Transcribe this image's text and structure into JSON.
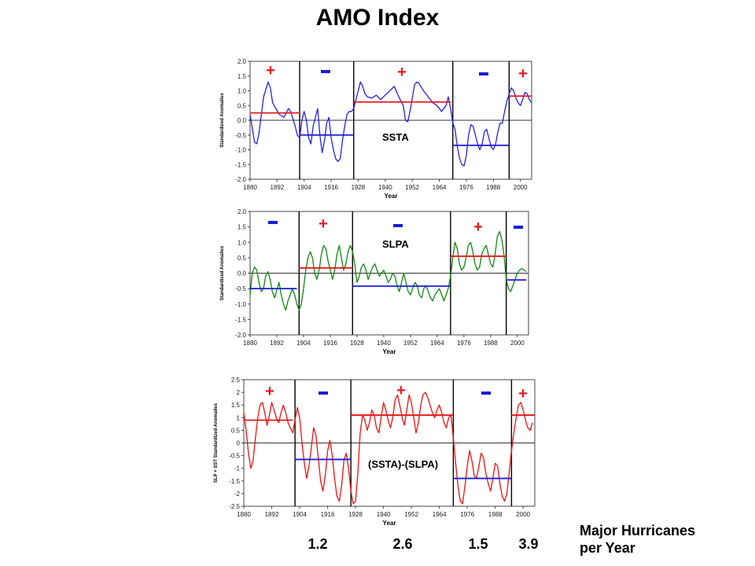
{
  "title": "AMO Index",
  "hurricanes": {
    "title_line1": "Major Hurricanes",
    "title_line2": "per Year",
    "values": [
      "1.2",
      "2.6",
      "1.5",
      "3.9"
    ]
  },
  "colors": {
    "positive": "#e8171b",
    "negative": "#1b1bd6",
    "ssta_line": "#2222ee",
    "slpa_line": "#118811",
    "diff_line": "#ee1111"
  },
  "chart_data": [
    {
      "type": "line",
      "title": "SSTA",
      "xlabel": "Year",
      "ylabel": "Standardized Anomalies",
      "xlim": [
        1880,
        2005
      ],
      "ylim": [
        -2.0,
        2.0
      ],
      "xticks": [
        1880,
        1892,
        1904,
        1916,
        1928,
        1940,
        1952,
        1964,
        1976,
        1988,
        2000
      ],
      "yticks": [
        2.0,
        1.5,
        1.0,
        0.5,
        0.0,
        -0.5,
        -1.0,
        -1.5,
        -2.0
      ],
      "ytick_labels": [
        "2.0",
        "1.5",
        "1.0",
        "0.5",
        "0.0",
        "-0.5",
        "-1.0",
        "-1.5",
        "-2.0"
      ],
      "dividers": [
        1902,
        1926,
        1970,
        1995
      ],
      "series": [
        {
          "x": [
            1880,
            1882,
            1883,
            1884,
            1886,
            1888,
            1889,
            1890,
            1891,
            1893,
            1895,
            1897,
            1898,
            1900,
            1901,
            1902,
            1903,
            1904,
            1905,
            1906,
            1907,
            1908,
            1910,
            1911,
            1912,
            1913,
            1914,
            1915,
            1916,
            1917,
            1918,
            1919,
            1920,
            1921,
            1922,
            1923,
            1924,
            1925,
            1926,
            1927,
            1928,
            1929,
            1930,
            1931,
            1932,
            1934,
            1936,
            1938,
            1940,
            1942,
            1944,
            1946,
            1948,
            1949,
            1950,
            1951,
            1953,
            1954,
            1955,
            1957,
            1959,
            1961,
            1963,
            1965,
            1967,
            1968,
            1969,
            1970,
            1971,
            1972,
            1973,
            1974,
            1975,
            1976,
            1977,
            1978,
            1979,
            1980,
            1981,
            1982,
            1983,
            1984,
            1985,
            1986,
            1987,
            1988,
            1989,
            1990,
            1991,
            1992,
            1993,
            1994,
            1995,
            1996,
            1997,
            1998,
            1999,
            2000,
            2001,
            2002,
            2003,
            2004,
            2005
          ],
          "y": [
            0.2,
            -0.75,
            -0.8,
            -0.4,
            0.8,
            1.3,
            1.1,
            0.6,
            0.45,
            0.2,
            0.1,
            0.4,
            0.3,
            -0.2,
            -0.5,
            -0.6,
            0.0,
            0.3,
            0.0,
            -0.6,
            -0.8,
            -0.2,
            0.4,
            -0.5,
            -1.1,
            -0.7,
            -0.1,
            0.1,
            -0.6,
            -1.0,
            -1.3,
            -1.4,
            -1.3,
            -0.7,
            -0.2,
            0.2,
            0.3,
            0.3,
            0.4,
            0.7,
            1.0,
            1.3,
            1.15,
            0.9,
            0.8,
            0.75,
            0.85,
            0.7,
            0.85,
            1.0,
            1.15,
            0.8,
            0.5,
            0.0,
            -0.05,
            0.3,
            1.2,
            1.3,
            1.25,
            1.0,
            0.8,
            0.6,
            0.5,
            0.3,
            0.5,
            0.8,
            0.4,
            -0.1,
            -0.3,
            -0.9,
            -1.3,
            -1.5,
            -1.55,
            -1.2,
            -0.5,
            -0.15,
            -0.2,
            -0.5,
            -0.8,
            -1.0,
            -0.8,
            -0.4,
            -0.3,
            -0.6,
            -0.9,
            -1.0,
            -0.8,
            -0.4,
            -0.1,
            -0.1,
            0.3,
            0.65,
            0.9,
            1.1,
            1.0,
            0.75,
            0.6,
            0.5,
            0.7,
            0.95,
            0.9,
            0.7,
            0.6
          ]
        }
      ],
      "means": [
        {
          "x": [
            1880,
            1902
          ],
          "y": 0.25,
          "sign": "+"
        },
        {
          "x": [
            1902,
            1926
          ],
          "y": -0.5,
          "sign": "-"
        },
        {
          "x": [
            1926,
            1969
          ],
          "y": 0.62,
          "sign": "+"
        },
        {
          "x": [
            1970,
            1995
          ],
          "y": -0.85,
          "sign": "-"
        },
        {
          "x": [
            1995,
            2005
          ],
          "y": 0.82,
          "sign": "+"
        }
      ]
    },
    {
      "type": "line",
      "title": "SLPA",
      "xlabel": "Year",
      "ylabel": "Standardized Anomalies",
      "xlim": [
        1880,
        2005
      ],
      "ylim": [
        -2.0,
        2.0
      ],
      "xticks": [
        1880,
        1892,
        1904,
        1916,
        1928,
        1940,
        1952,
        1964,
        1976,
        1988,
        2000
      ],
      "yticks": [
        2.0,
        1.5,
        1.0,
        0.5,
        0.0,
        -0.5,
        -1.0,
        -1.5,
        -2.0
      ],
      "ytick_labels": [
        "2.0",
        "1.5",
        "1.0",
        "0.5",
        "0.0",
        "-0.5",
        "-1.0",
        "-1.5",
        "-2.0"
      ],
      "dividers": [
        1902,
        1926,
        1970,
        1995
      ],
      "series": [
        {
          "x": [
            1880,
            1881,
            1882,
            1883,
            1884,
            1885,
            1886,
            1887,
            1888,
            1889,
            1890,
            1891,
            1892,
            1893,
            1894,
            1895,
            1896,
            1897,
            1898,
            1899,
            1900,
            1901,
            1902,
            1903,
            1904,
            1905,
            1906,
            1907,
            1908,
            1909,
            1910,
            1911,
            1912,
            1913,
            1914,
            1915,
            1916,
            1917,
            1918,
            1919,
            1920,
            1921,
            1922,
            1923,
            1924,
            1925,
            1926,
            1927,
            1928,
            1929,
            1930,
            1931,
            1932,
            1933,
            1934,
            1935,
            1936,
            1937,
            1938,
            1939,
            1940,
            1941,
            1942,
            1943,
            1944,
            1945,
            1946,
            1947,
            1948,
            1949,
            1950,
            1951,
            1952,
            1953,
            1954,
            1955,
            1956,
            1957,
            1958,
            1959,
            1960,
            1961,
            1962,
            1963,
            1964,
            1965,
            1966,
            1967,
            1968,
            1969,
            1970,
            1971,
            1972,
            1973,
            1974,
            1975,
            1976,
            1977,
            1978,
            1979,
            1980,
            1981,
            1982,
            1983,
            1984,
            1985,
            1986,
            1987,
            1988,
            1989,
            1990,
            1991,
            1992,
            1993,
            1994,
            1995,
            1996,
            1997,
            1998,
            1999,
            2000,
            2001,
            2002,
            2003,
            2004
          ],
          "y": [
            -0.7,
            0.0,
            0.2,
            0.1,
            -0.3,
            -0.6,
            -0.5,
            -0.1,
            0.05,
            -0.2,
            -0.6,
            -0.8,
            -0.55,
            -0.3,
            -0.7,
            -1.0,
            -1.2,
            -0.9,
            -0.7,
            -0.5,
            -0.7,
            -1.0,
            -1.2,
            -1.0,
            -0.5,
            0.1,
            0.5,
            0.7,
            0.5,
            0.0,
            -0.2,
            0.1,
            0.6,
            0.9,
            0.8,
            0.4,
            0.1,
            -0.2,
            0.1,
            0.6,
            0.9,
            0.5,
            0.1,
            0.3,
            0.7,
            0.9,
            0.7,
            0.3,
            -0.3,
            -0.1,
            0.2,
            0.3,
            0.1,
            -0.2,
            0.0,
            0.2,
            0.3,
            0.1,
            -0.1,
            0.0,
            0.1,
            -0.1,
            -0.3,
            -0.2,
            0.0,
            -0.1,
            -0.4,
            -0.6,
            -0.3,
            0.0,
            -0.3,
            -0.6,
            -0.7,
            -0.5,
            -0.3,
            -0.4,
            -0.7,
            -0.8,
            -0.5,
            -0.4,
            -0.6,
            -0.8,
            -0.9,
            -0.7,
            -0.6,
            -0.5,
            -0.7,
            -0.9,
            -0.7,
            -0.5,
            -0.1,
            0.5,
            1.0,
            0.8,
            0.3,
            0.1,
            0.2,
            0.5,
            0.9,
            1.0,
            0.7,
            0.3,
            0.1,
            0.2,
            0.6,
            0.8,
            0.9,
            0.6,
            0.3,
            0.2,
            0.6,
            1.2,
            1.35,
            1.1,
            0.6,
            -0.2,
            -0.5,
            -0.6,
            -0.4,
            -0.2,
            0.0,
            0.1,
            0.15,
            0.1,
            0.05
          ]
        }
      ],
      "means": [
        {
          "x": [
            1880,
            1901
          ],
          "y": -0.5,
          "sign": "-"
        },
        {
          "x": [
            1902,
            1926
          ],
          "y": 0.17,
          "sign": "+"
        },
        {
          "x": [
            1926,
            1970
          ],
          "y": -0.42,
          "sign": "-"
        },
        {
          "x": [
            1970,
            1995
          ],
          "y": 0.55,
          "sign": "+"
        },
        {
          "x": [
            1995,
            2004
          ],
          "y": -0.22,
          "sign": "-"
        }
      ]
    },
    {
      "type": "line",
      "title": "(SSTA)-(SLPA)",
      "xlabel": "Year",
      "ylabel": "SLP + SST Standardized Anomalies",
      "xlim": [
        1880,
        2005
      ],
      "ylim": [
        -2.5,
        2.5
      ],
      "xticks": [
        1880,
        1892,
        1904,
        1916,
        1928,
        1940,
        1952,
        1964,
        1976,
        1988,
        2000
      ],
      "yticks": [
        2.5,
        2,
        1.5,
        1,
        0.5,
        0,
        -0.5,
        -1,
        -1.5,
        -2,
        -2.5
      ],
      "ytick_labels": [
        "2.5",
        "2",
        "1.5",
        "1",
        "0.5",
        "0",
        "-0.5",
        "-1",
        "-1.5",
        "-2",
        "-2.5"
      ],
      "dividers": [
        1902,
        1926,
        1970,
        1995
      ],
      "series": [
        {
          "x": [
            1880,
            1881,
            1882,
            1883,
            1884,
            1885,
            1886,
            1887,
            1888,
            1889,
            1890,
            1891,
            1892,
            1893,
            1894,
            1895,
            1896,
            1897,
            1898,
            1899,
            1900,
            1901,
            1902,
            1903,
            1904,
            1905,
            1906,
            1907,
            1908,
            1909,
            1910,
            1911,
            1912,
            1913,
            1914,
            1915,
            1916,
            1917,
            1918,
            1919,
            1920,
            1921,
            1922,
            1923,
            1924,
            1925,
            1926,
            1927,
            1928,
            1929,
            1930,
            1931,
            1932,
            1933,
            1934,
            1935,
            1936,
            1937,
            1938,
            1939,
            1940,
            1941,
            1942,
            1943,
            1944,
            1945,
            1946,
            1947,
            1948,
            1949,
            1950,
            1951,
            1952,
            1953,
            1954,
            1955,
            1956,
            1957,
            1958,
            1959,
            1960,
            1961,
            1962,
            1963,
            1964,
            1965,
            1966,
            1967,
            1968,
            1969,
            1970,
            1971,
            1972,
            1973,
            1974,
            1975,
            1976,
            1977,
            1978,
            1979,
            1980,
            1981,
            1982,
            1983,
            1984,
            1985,
            1986,
            1987,
            1988,
            1989,
            1990,
            1991,
            1992,
            1993,
            1994,
            1995,
            1996,
            1997,
            1998,
            1999,
            2000,
            2001,
            2002,
            2003,
            2004
          ],
          "y": [
            1.2,
            0.5,
            -0.4,
            -1.0,
            -0.7,
            0.2,
            1.0,
            1.5,
            1.6,
            1.2,
            0.7,
            1.1,
            1.6,
            1.3,
            1.0,
            0.8,
            1.2,
            1.5,
            1.2,
            0.8,
            0.6,
            0.4,
            0.9,
            1.4,
            1.0,
            0.0,
            -0.8,
            -1.4,
            -0.9,
            -0.2,
            0.6,
            0.3,
            -0.6,
            -1.5,
            -1.9,
            -1.3,
            -0.3,
            0.1,
            -0.5,
            -1.4,
            -2.1,
            -2.3,
            -1.7,
            -0.7,
            -0.4,
            -1.0,
            -1.9,
            -2.4,
            -2.3,
            -1.2,
            0.4,
            1.1,
            0.9,
            0.5,
            0.8,
            1.3,
            1.1,
            0.6,
            0.4,
            1.0,
            1.6,
            1.3,
            0.9,
            0.6,
            1.0,
            1.7,
            1.9,
            1.5,
            1.0,
            0.7,
            1.3,
            1.9,
            1.6,
            1.0,
            0.4,
            0.8,
            1.5,
            1.9,
            2.0,
            1.8,
            1.5,
            1.2,
            1.0,
            1.3,
            1.5,
            1.2,
            0.8,
            0.6,
            1.0,
            1.1,
            0.2,
            -0.8,
            -1.7,
            -2.3,
            -2.4,
            -1.7,
            -0.9,
            -0.3,
            -0.7,
            -1.3,
            -1.4,
            -0.9,
            -0.4,
            -0.6,
            -1.2,
            -1.6,
            -1.9,
            -1.4,
            -0.8,
            -0.9,
            -1.6,
            -2.1,
            -2.3,
            -2.0,
            -1.2,
            -0.3,
            0.4,
            1.0,
            1.5,
            1.6,
            1.3,
            0.9,
            0.6,
            0.5,
            0.8
          ]
        }
      ],
      "means": [
        {
          "x": [
            1880,
            1901
          ],
          "y": 0.9,
          "sign": "+"
        },
        {
          "x": [
            1902,
            1926
          ],
          "y": -0.65,
          "sign": "-"
        },
        {
          "x": [
            1926,
            1970
          ],
          "y": 1.1,
          "sign": "+"
        },
        {
          "x": [
            1970,
            1995
          ],
          "y": -1.4,
          "sign": "-"
        },
        {
          "x": [
            1995,
            2005
          ],
          "y": 1.1,
          "sign": "+"
        }
      ]
    }
  ]
}
